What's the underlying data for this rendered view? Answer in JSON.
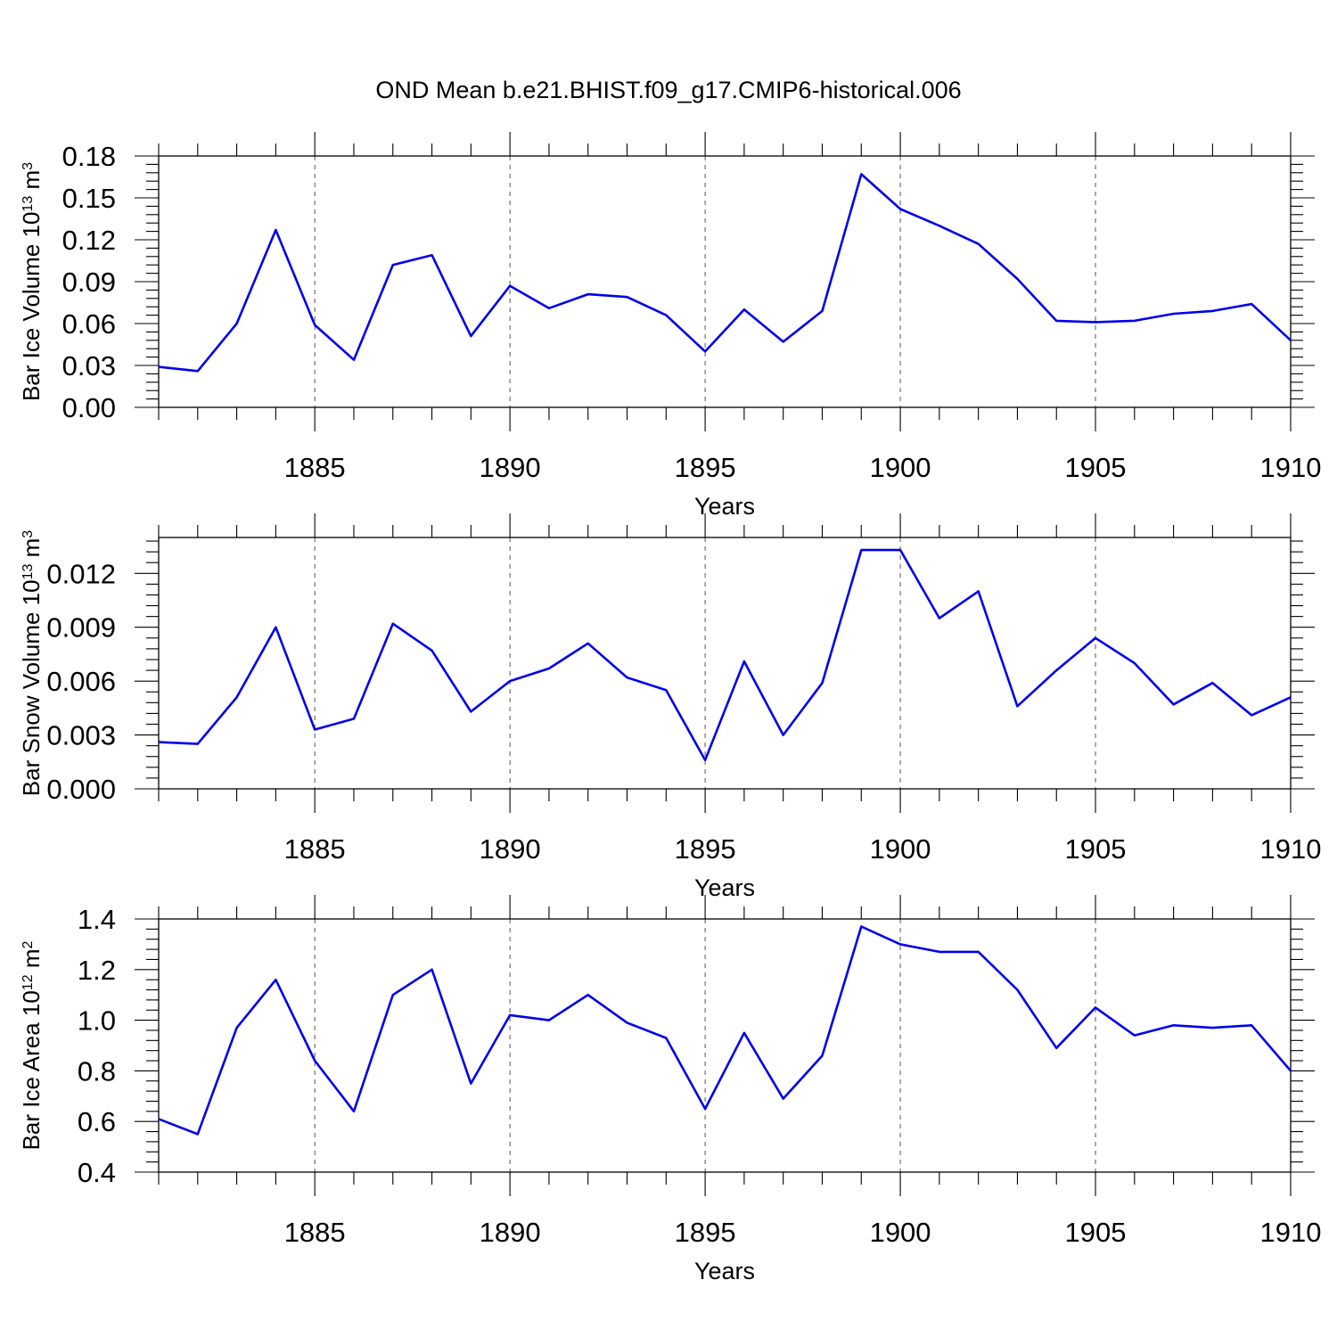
{
  "title": "OND Mean b.e21.BHIST.f09_g17.CMIP6-historical.006",
  "colors": {
    "line": "#0000ee",
    "grid": "#555555",
    "axis": "#000000"
  },
  "chart_data": [
    {
      "type": "line",
      "xlabel": "Years",
      "ylabel": {
        "text": "Bar Ice Volume 10",
        "exp": "13",
        "unit": " m",
        "unit_exp": "3"
      },
      "xlim": [
        1881,
        1910
      ],
      "ylim": [
        0,
        0.18
      ],
      "xticks": [
        1885,
        1890,
        1895,
        1900,
        1905,
        1910
      ],
      "yticks": [
        "0.00",
        "0.03",
        "0.06",
        "0.09",
        "0.12",
        "0.15",
        "0.18"
      ],
      "x": [
        1881,
        1882,
        1883,
        1884,
        1885,
        1886,
        1887,
        1888,
        1889,
        1890,
        1891,
        1892,
        1893,
        1894,
        1895,
        1896,
        1897,
        1898,
        1899,
        1900,
        1901,
        1902,
        1903,
        1904,
        1905,
        1906,
        1907,
        1908,
        1909,
        1910
      ],
      "values": [
        0.029,
        0.026,
        0.06,
        0.127,
        0.059,
        0.034,
        0.102,
        0.109,
        0.051,
        0.087,
        0.071,
        0.081,
        0.079,
        0.066,
        0.04,
        0.07,
        0.047,
        0.069,
        0.167,
        0.142,
        0.13,
        0.117,
        0.092,
        0.062,
        0.061,
        0.062,
        0.067,
        0.069,
        0.074,
        0.048
      ]
    },
    {
      "type": "line",
      "xlabel": "Years",
      "ylabel": {
        "text": "Bar Snow Volume 10",
        "exp": "13",
        "unit": " m",
        "unit_exp": "3"
      },
      "xlim": [
        1881,
        1910
      ],
      "ylim": [
        0,
        0.014
      ],
      "xticks": [
        1885,
        1890,
        1895,
        1900,
        1905,
        1910
      ],
      "yticks": [
        "0.000",
        "0.003",
        "0.006",
        "0.009",
        "0.012"
      ],
      "x": [
        1881,
        1882,
        1883,
        1884,
        1885,
        1886,
        1887,
        1888,
        1889,
        1890,
        1891,
        1892,
        1893,
        1894,
        1895,
        1896,
        1897,
        1898,
        1899,
        1900,
        1901,
        1902,
        1903,
        1904,
        1905,
        1906,
        1907,
        1908,
        1909,
        1910
      ],
      "values": [
        0.0026,
        0.0025,
        0.0051,
        0.009,
        0.0033,
        0.0039,
        0.0092,
        0.0077,
        0.0043,
        0.006,
        0.0067,
        0.0081,
        0.0062,
        0.0055,
        0.0016,
        0.0071,
        0.003,
        0.0059,
        0.0133,
        0.0133,
        0.0095,
        0.011,
        0.0046,
        0.0066,
        0.0084,
        0.007,
        0.0047,
        0.0059,
        0.0041,
        0.0051
      ]
    },
    {
      "type": "line",
      "xlabel": "Years",
      "ylabel": {
        "text": "Bar Ice Area 10",
        "exp": "12",
        "unit": " m",
        "unit_exp": "2"
      },
      "xlim": [
        1881,
        1910
      ],
      "ylim": [
        0.4,
        1.4
      ],
      "xticks": [
        1885,
        1890,
        1895,
        1900,
        1905,
        1910
      ],
      "yticks": [
        "0.4",
        "0.6",
        "0.8",
        "1.0",
        "1.2",
        "1.4"
      ],
      "x": [
        1881,
        1882,
        1883,
        1884,
        1885,
        1886,
        1887,
        1888,
        1889,
        1890,
        1891,
        1892,
        1893,
        1894,
        1895,
        1896,
        1897,
        1898,
        1899,
        1900,
        1901,
        1902,
        1903,
        1904,
        1905,
        1906,
        1907,
        1908,
        1909,
        1910
      ],
      "values": [
        0.61,
        0.55,
        0.97,
        1.16,
        0.84,
        0.64,
        1.1,
        1.2,
        0.75,
        1.02,
        1.0,
        1.1,
        0.99,
        0.93,
        0.65,
        0.95,
        0.69,
        0.86,
        1.37,
        1.3,
        1.27,
        1.27,
        1.12,
        0.89,
        1.05,
        0.94,
        0.98,
        0.97,
        0.98,
        0.8
      ]
    }
  ]
}
